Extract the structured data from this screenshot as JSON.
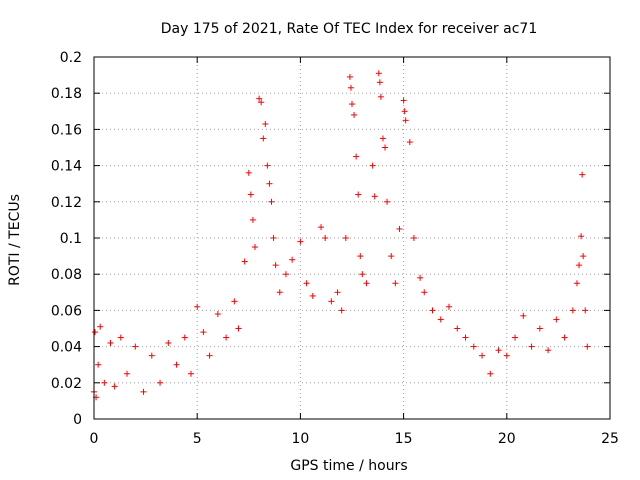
{
  "chart_data": {
    "type": "scatter",
    "title": "Day 175 of 2021, Rate Of TEC Index for receiver ac71",
    "xlabel": "GPS time / hours",
    "ylabel": "ROTI / TECUs",
    "xlim": [
      0,
      25
    ],
    "ylim": [
      0,
      0.2
    ],
    "xticks": [
      0,
      5,
      10,
      15,
      20,
      25
    ],
    "yticks": [
      0,
      0.02,
      0.04,
      0.06,
      0.08,
      0.1,
      0.12,
      0.14,
      0.16,
      0.18,
      0.2
    ],
    "xtick_labels": [
      "0",
      "5",
      "10",
      "15",
      "20",
      "25"
    ],
    "ytick_labels": [
      "0",
      "0.02",
      "0.04",
      "0.06",
      "0.08",
      "0.1",
      "0.12",
      "0.14",
      "0.16",
      "0.18",
      "0.2"
    ],
    "grid": true,
    "marker": "+",
    "color": "#ff0000",
    "series": [
      {
        "points": [
          [
            0.0,
            0.015
          ],
          [
            0.05,
            0.048
          ],
          [
            0.1,
            0.012
          ],
          [
            0.2,
            0.03
          ],
          [
            0.3,
            0.051
          ],
          [
            0.5,
            0.02
          ],
          [
            0.8,
            0.042
          ],
          [
            1.0,
            0.018
          ],
          [
            1.3,
            0.045
          ],
          [
            1.6,
            0.025
          ],
          [
            2.0,
            0.04
          ],
          [
            2.4,
            0.015
          ],
          [
            2.8,
            0.035
          ],
          [
            3.2,
            0.02
          ],
          [
            3.6,
            0.042
          ],
          [
            4.0,
            0.03
          ],
          [
            4.4,
            0.045
          ],
          [
            4.7,
            0.025
          ],
          [
            5.0,
            0.062
          ],
          [
            5.3,
            0.048
          ],
          [
            5.6,
            0.035
          ],
          [
            6.0,
            0.058
          ],
          [
            6.4,
            0.045
          ],
          [
            6.8,
            0.065
          ],
          [
            7.0,
            0.05
          ],
          [
            7.3,
            0.087
          ],
          [
            7.5,
            0.136
          ],
          [
            7.6,
            0.124
          ],
          [
            7.7,
            0.11
          ],
          [
            7.8,
            0.095
          ],
          [
            8.0,
            0.177
          ],
          [
            8.1,
            0.175
          ],
          [
            8.2,
            0.155
          ],
          [
            8.3,
            0.163
          ],
          [
            8.4,
            0.14
          ],
          [
            8.5,
            0.13
          ],
          [
            8.6,
            0.12
          ],
          [
            8.7,
            0.1
          ],
          [
            8.8,
            0.085
          ],
          [
            9.0,
            0.07
          ],
          [
            9.3,
            0.08
          ],
          [
            9.6,
            0.088
          ],
          [
            10.0,
            0.098
          ],
          [
            10.3,
            0.075
          ],
          [
            10.6,
            0.068
          ],
          [
            11.0,
            0.106
          ],
          [
            11.2,
            0.1
          ],
          [
            11.5,
            0.065
          ],
          [
            11.8,
            0.07
          ],
          [
            12.0,
            0.06
          ],
          [
            12.2,
            0.1
          ],
          [
            12.4,
            0.189
          ],
          [
            12.45,
            0.183
          ],
          [
            12.5,
            0.174
          ],
          [
            12.6,
            0.168
          ],
          [
            12.7,
            0.145
          ],
          [
            12.8,
            0.124
          ],
          [
            12.9,
            0.09
          ],
          [
            13.0,
            0.08
          ],
          [
            13.2,
            0.075
          ],
          [
            13.5,
            0.14
          ],
          [
            13.6,
            0.123
          ],
          [
            13.8,
            0.191
          ],
          [
            13.85,
            0.186
          ],
          [
            13.9,
            0.178
          ],
          [
            14.0,
            0.155
          ],
          [
            14.1,
            0.15
          ],
          [
            14.2,
            0.12
          ],
          [
            14.4,
            0.09
          ],
          [
            14.6,
            0.075
          ],
          [
            14.8,
            0.105
          ],
          [
            15.0,
            0.176
          ],
          [
            15.05,
            0.17
          ],
          [
            15.1,
            0.165
          ],
          [
            15.3,
            0.153
          ],
          [
            15.5,
            0.1
          ],
          [
            15.8,
            0.078
          ],
          [
            16.0,
            0.07
          ],
          [
            16.4,
            0.06
          ],
          [
            16.8,
            0.055
          ],
          [
            17.2,
            0.062
          ],
          [
            17.6,
            0.05
          ],
          [
            18.0,
            0.045
          ],
          [
            18.4,
            0.04
          ],
          [
            18.8,
            0.035
          ],
          [
            19.2,
            0.025
          ],
          [
            19.6,
            0.038
          ],
          [
            20.0,
            0.035
          ],
          [
            20.4,
            0.045
          ],
          [
            20.8,
            0.057
          ],
          [
            21.2,
            0.04
          ],
          [
            21.6,
            0.05
          ],
          [
            22.0,
            0.038
          ],
          [
            22.4,
            0.055
          ],
          [
            22.8,
            0.045
          ],
          [
            23.2,
            0.06
          ],
          [
            23.4,
            0.075
          ],
          [
            23.5,
            0.085
          ],
          [
            23.6,
            0.101
          ],
          [
            23.65,
            0.135
          ],
          [
            23.7,
            0.09
          ],
          [
            23.8,
            0.06
          ],
          [
            23.9,
            0.04
          ]
        ]
      }
    ]
  }
}
